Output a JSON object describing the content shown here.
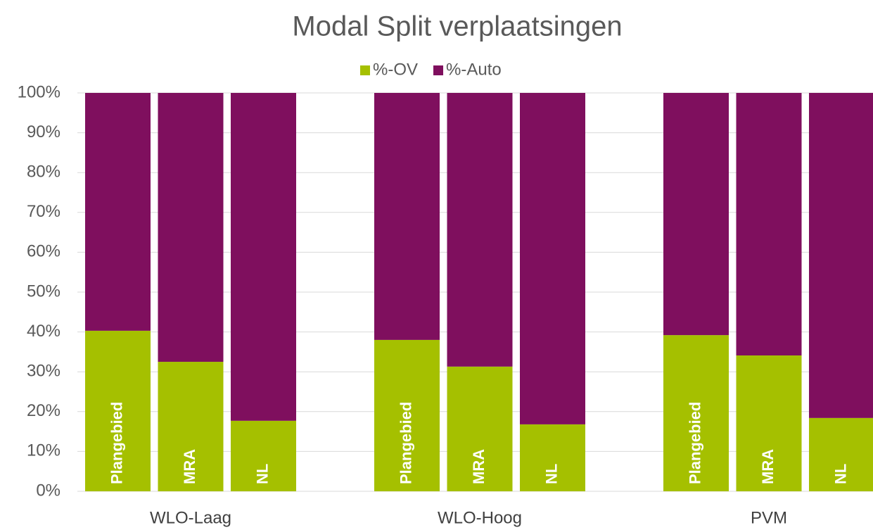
{
  "chart_data": {
    "type": "bar",
    "stacked": true,
    "title": "Modal Split verplaatsingen",
    "groups": [
      "WLO-Laag",
      "WLO-Hoog",
      "PVM"
    ],
    "categories": [
      "Plangebied",
      "MRA",
      "NL",
      "Plangebied",
      "MRA",
      "NL",
      "Plangebied",
      "MRA",
      "NL"
    ],
    "series": [
      {
        "name": "%-OV",
        "color": "#a5c000",
        "values": [
          40.3,
          32.5,
          17.7,
          38,
          31.3,
          16.8,
          39.2,
          34.1,
          18.4
        ]
      },
      {
        "name": "%-Auto",
        "color": "#7f0f5e",
        "values": [
          59.7,
          67.5,
          82.3,
          62,
          68.7,
          83.2,
          60.8,
          65.9,
          81.6
        ]
      }
    ],
    "ylim": [
      0,
      100
    ],
    "yticks": [
      {
        "value": 0,
        "label": "0%"
      },
      {
        "value": 10,
        "label": "10%"
      },
      {
        "value": 20,
        "label": "20%"
      },
      {
        "value": 30,
        "label": "30%"
      },
      {
        "value": 40,
        "label": "40%"
      },
      {
        "value": 50,
        "label": "50%"
      },
      {
        "value": 60,
        "label": "60%"
      },
      {
        "value": 70,
        "label": "70%"
      },
      {
        "value": 80,
        "label": "80%"
      },
      {
        "value": 90,
        "label": "90%"
      },
      {
        "value": 100,
        "label": "100%"
      }
    ],
    "grid": true,
    "legend": "top"
  }
}
